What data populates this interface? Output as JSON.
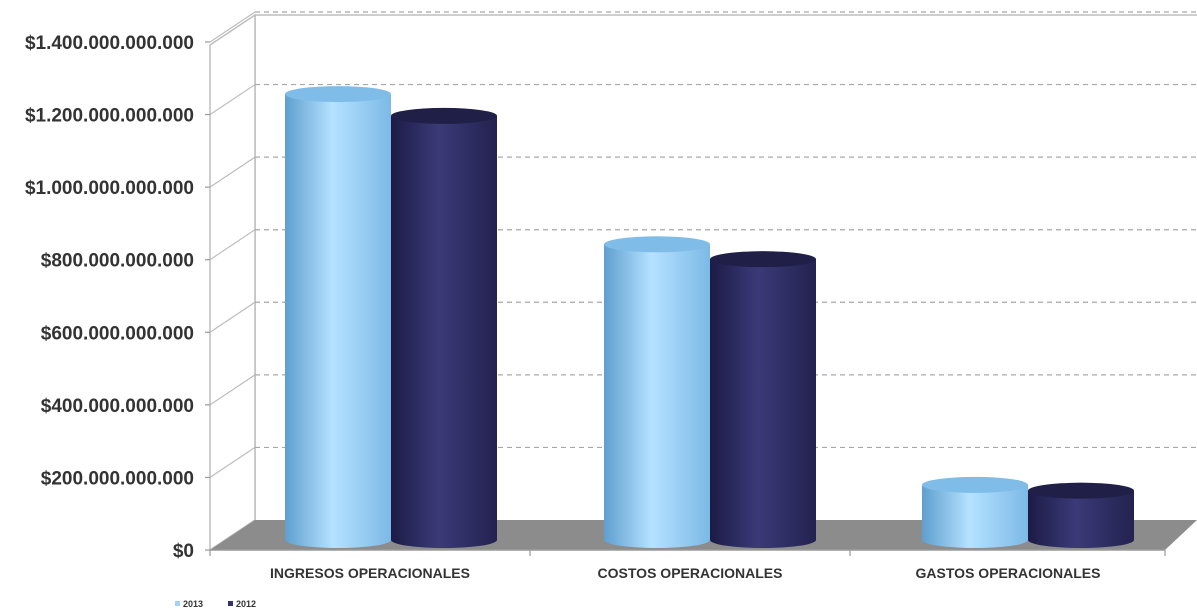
{
  "chart_data": {
    "type": "bar",
    "categories": [
      "INGRESOS OPERACIONALES",
      "COSTOS OPERACIONALES",
      "GASTOS OPERACIONALES"
    ],
    "series": [
      {
        "name": "2013",
        "values": [
          1273000000000,
          859000000000,
          196000000000
        ],
        "color": "#9fd4f6"
      },
      {
        "name": "2012",
        "values": [
          1213000000000,
          818000000000,
          180000000000
        ],
        "color": "#34326a"
      }
    ],
    "yticks": [
      "$0",
      "$200.000.000.000",
      "$400.000.000.000",
      "$600.000.000.000",
      "$800.000.000.000",
      "$1.000.000.000.000",
      "$1.200.000.000.000",
      "$1.400.000.000.000"
    ],
    "ylim": [
      0,
      1400000000000
    ],
    "grid": true,
    "legend_position": "bottom-left",
    "style": "3d-cylinder"
  }
}
